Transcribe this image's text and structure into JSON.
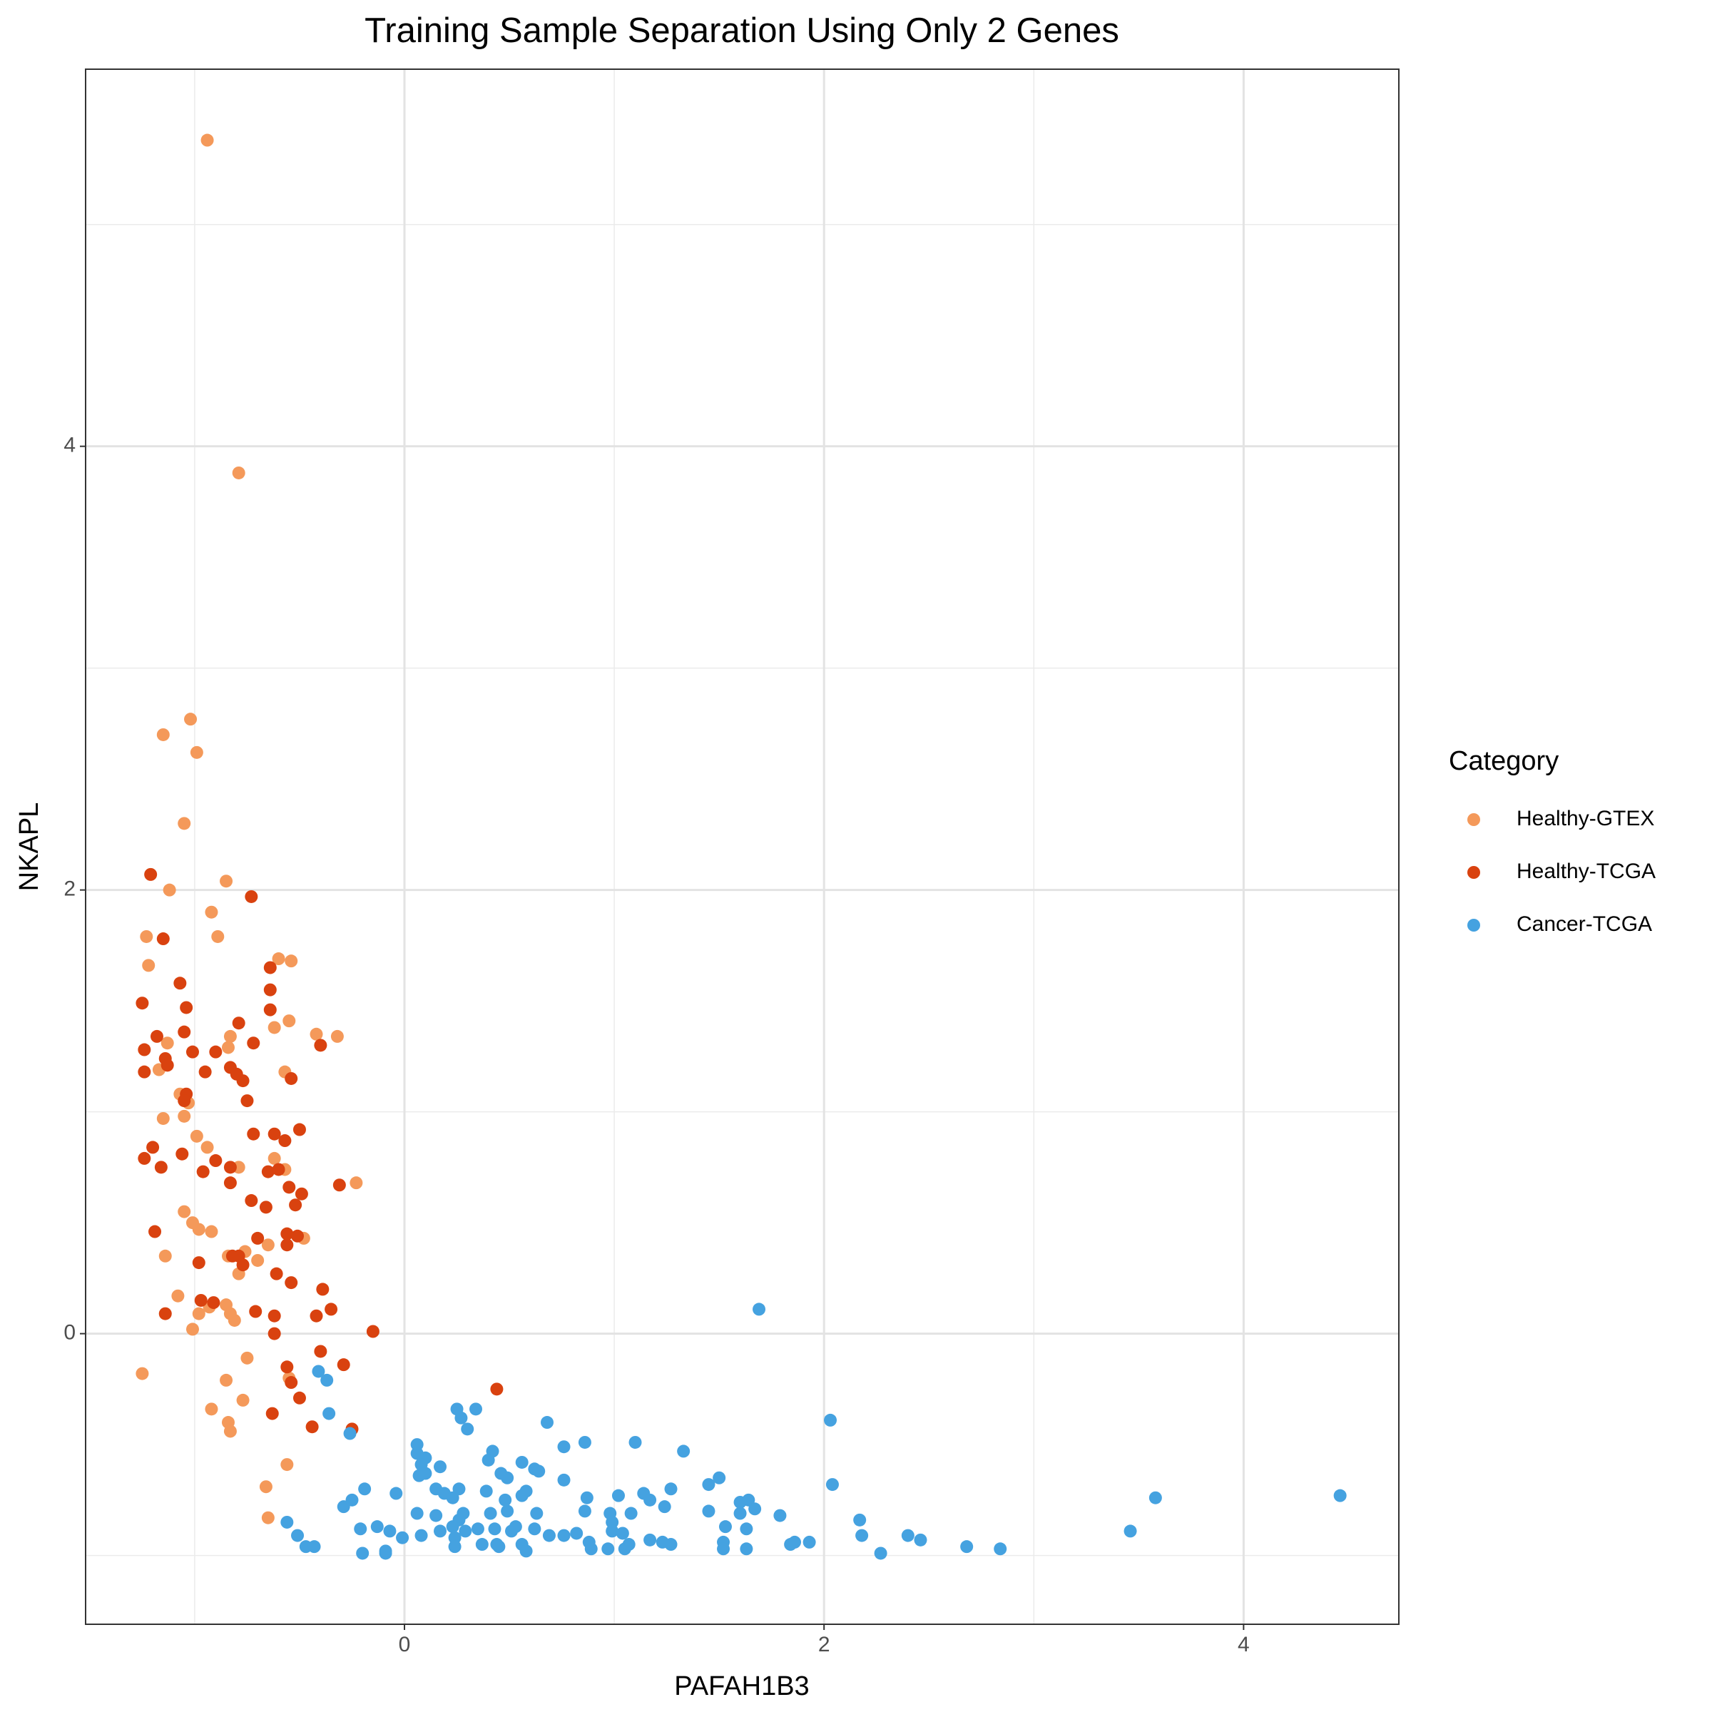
{
  "chart_data": {
    "type": "scatter",
    "title": "Training Sample Separation Using Only 2 Genes",
    "x_label": "PAFAH1B3",
    "y_label": "NKAPL",
    "xlim": [
      -1.52,
      4.74
    ],
    "ylim": [
      -1.31,
      5.7
    ],
    "xticks": [
      0,
      2,
      4
    ],
    "yticks": [
      0,
      2,
      4
    ],
    "x_minor_grid": [
      -1,
      1,
      3
    ],
    "y_minor_grid": [
      -1,
      1,
      3,
      5
    ],
    "grid": true,
    "legend_title": "Category",
    "legend_position": "right",
    "series": [
      {
        "name": "Healthy-GTEX",
        "color": "#f4995a",
        "x": [
          -0.94,
          -0.79,
          -1.02,
          -1.15,
          -0.99,
          -1.05,
          -0.85,
          -1.12,
          -0.92,
          -1.23,
          -0.89,
          -1.22,
          -0.6,
          -0.54,
          -0.55,
          -0.62,
          -0.42,
          -0.32,
          -0.83,
          -0.84,
          -1.13,
          -1.17,
          -0.57,
          -1.03,
          -1.07,
          -1.15,
          -1.05,
          -0.99,
          -0.94,
          -0.62,
          -0.79,
          -0.57,
          -0.23,
          -1.05,
          -1.01,
          -0.92,
          -0.98,
          -0.48,
          -0.65,
          -0.76,
          -0.84,
          -1.14,
          -0.7,
          -0.79,
          -1.08,
          -0.85,
          -0.93,
          -0.98,
          -0.83,
          -0.81,
          -1.01,
          -1.25,
          -0.75,
          -0.85,
          -0.55,
          -0.77,
          -0.92,
          -0.84,
          -0.83,
          -0.56,
          -0.66,
          -0.65
        ],
        "values": [
          5.38,
          3.88,
          2.77,
          2.7,
          2.62,
          2.3,
          2.04,
          2.0,
          1.9,
          1.79,
          1.79,
          1.66,
          1.69,
          1.68,
          1.41,
          1.38,
          1.35,
          1.34,
          1.34,
          1.29,
          1.31,
          1.19,
          1.18,
          1.04,
          1.08,
          0.97,
          0.98,
          0.89,
          0.84,
          0.79,
          0.75,
          0.74,
          0.68,
          0.55,
          0.5,
          0.46,
          0.47,
          0.43,
          0.4,
          0.37,
          0.35,
          0.35,
          0.33,
          0.27,
          0.17,
          0.13,
          0.12,
          0.09,
          0.09,
          0.06,
          0.02,
          -0.18,
          -0.11,
          -0.21,
          -0.2,
          -0.3,
          -0.34,
          -0.4,
          -0.44,
          -0.59,
          -0.69,
          -0.83
        ]
      },
      {
        "name": "Healthy-TCGA",
        "color": "#d9420f",
        "x": [
          -1.21,
          -0.73,
          -1.15,
          -0.64,
          -1.07,
          -0.64,
          -1.25,
          -1.04,
          -0.64,
          -0.79,
          -1.18,
          -1.05,
          -0.4,
          -0.72,
          -1.24,
          -1.01,
          -0.9,
          -1.14,
          -1.13,
          -0.83,
          -1.24,
          -0.8,
          -0.95,
          -0.77,
          -0.54,
          -1.04,
          -0.75,
          -1.05,
          -0.5,
          -0.72,
          -0.62,
          -0.57,
          -1.2,
          -1.06,
          -1.24,
          -0.9,
          -1.16,
          -0.96,
          -0.83,
          -0.65,
          -0.6,
          -0.31,
          -0.55,
          -0.83,
          -0.49,
          -0.73,
          -0.66,
          -0.52,
          -1.19,
          -0.56,
          -0.51,
          -0.7,
          -0.56,
          -0.82,
          -0.79,
          -0.98,
          -0.77,
          -0.61,
          -0.54,
          -0.39,
          -0.97,
          -0.91,
          -0.35,
          -0.42,
          -1.14,
          -0.71,
          -0.62,
          -0.15,
          -0.62,
          -0.4,
          -0.29,
          -0.56,
          -0.54,
          -0.5,
          -0.63,
          -0.44,
          -0.25,
          0.44
        ],
        "values": [
          2.07,
          1.97,
          1.78,
          1.65,
          1.58,
          1.55,
          1.49,
          1.47,
          1.46,
          1.4,
          1.34,
          1.36,
          1.3,
          1.31,
          1.28,
          1.27,
          1.27,
          1.24,
          1.21,
          1.2,
          1.18,
          1.17,
          1.18,
          1.14,
          1.15,
          1.08,
          1.05,
          1.05,
          0.92,
          0.9,
          0.9,
          0.87,
          0.84,
          0.81,
          0.79,
          0.78,
          0.75,
          0.73,
          0.75,
          0.73,
          0.74,
          0.67,
          0.66,
          0.68,
          0.63,
          0.6,
          0.57,
          0.58,
          0.46,
          0.45,
          0.44,
          0.43,
          0.4,
          0.35,
          0.35,
          0.32,
          0.31,
          0.27,
          0.23,
          0.2,
          0.15,
          0.14,
          0.11,
          0.08,
          0.09,
          0.1,
          0.08,
          0.01,
          0.0,
          -0.08,
          -0.14,
          -0.15,
          -0.22,
          -0.29,
          -0.36,
          -0.42,
          -0.43,
          -0.25
        ]
      },
      {
        "name": "Cancer-TCGA",
        "color": "#45a2e0",
        "x": [
          1.69,
          2.03,
          -0.41,
          -0.37,
          -0.36,
          -0.26,
          0.25,
          0.34,
          0.27,
          0.3,
          0.68,
          0.86,
          0.76,
          1.1,
          1.33,
          0.06,
          0.06,
          0.1,
          0.42,
          0.4,
          0.08,
          0.17,
          0.56,
          0.62,
          0.64,
          0.46,
          0.49,
          1.5,
          1.45,
          0.07,
          0.1,
          0.76,
          -0.19,
          0.15,
          0.26,
          1.27,
          2.04,
          -0.04,
          0.19,
          0.23,
          0.39,
          0.58,
          0.48,
          0.56,
          0.87,
          1.14,
          1.02,
          -0.25,
          -0.29,
          3.58,
          4.46,
          1.64,
          1.6,
          1.17,
          1.24,
          1.45,
          1.67,
          1.6,
          0.06,
          0.15,
          0.28,
          0.26,
          0.41,
          0.49,
          0.63,
          0.86,
          0.98,
          1.08,
          0.99,
          1.79,
          2.17,
          -0.56,
          -0.13,
          -0.21,
          -0.07,
          -0.01,
          0.08,
          0.17,
          0.23,
          0.29,
          0.35,
          0.43,
          0.51,
          0.53,
          0.62,
          0.69,
          0.76,
          0.82,
          0.99,
          1.04,
          1.53,
          1.63,
          3.46,
          2.4,
          2.18,
          2.46,
          0.88,
          1.17,
          -0.51,
          -0.47,
          -0.43,
          0.24,
          0.24,
          0.37,
          0.44,
          0.45,
          0.56,
          0.58,
          0.89,
          0.97,
          1.05,
          1.07,
          1.23,
          1.27,
          1.52,
          1.52,
          1.63,
          1.84,
          1.86,
          1.93,
          2.68,
          2.84,
          2.27,
          -0.2,
          -0.09,
          -0.09
        ],
        "values": [
          0.11,
          -0.39,
          -0.17,
          -0.21,
          -0.36,
          -0.45,
          -0.34,
          -0.34,
          -0.38,
          -0.43,
          -0.4,
          -0.49,
          -0.51,
          -0.49,
          -0.53,
          -0.5,
          -0.54,
          -0.56,
          -0.53,
          -0.57,
          -0.59,
          -0.6,
          -0.58,
          -0.61,
          -0.62,
          -0.63,
          -0.65,
          -0.65,
          -0.68,
          -0.64,
          -0.63,
          -0.66,
          -0.7,
          -0.7,
          -0.7,
          -0.7,
          -0.68,
          -0.72,
          -0.72,
          -0.74,
          -0.71,
          -0.71,
          -0.75,
          -0.73,
          -0.74,
          -0.72,
          -0.73,
          -0.75,
          -0.78,
          -0.74,
          -0.73,
          -0.75,
          -0.76,
          -0.75,
          -0.78,
          -0.8,
          -0.79,
          -0.81,
          -0.81,
          -0.82,
          -0.81,
          -0.84,
          -0.81,
          -0.8,
          -0.81,
          -0.8,
          -0.81,
          -0.81,
          -0.85,
          -0.82,
          -0.84,
          -0.85,
          -0.87,
          -0.88,
          -0.89,
          -0.92,
          -0.91,
          -0.89,
          -0.87,
          -0.89,
          -0.88,
          -0.88,
          -0.89,
          -0.87,
          -0.88,
          -0.91,
          -0.91,
          -0.9,
          -0.89,
          -0.9,
          -0.87,
          -0.88,
          -0.89,
          -0.91,
          -0.91,
          -0.93,
          -0.94,
          -0.93,
          -0.91,
          -0.96,
          -0.96,
          -0.92,
          -0.96,
          -0.95,
          -0.95,
          -0.96,
          -0.95,
          -0.98,
          -0.97,
          -0.97,
          -0.97,
          -0.95,
          -0.94,
          -0.95,
          -0.94,
          -0.97,
          -0.97,
          -0.95,
          -0.94,
          -0.94,
          -0.96,
          -0.97,
          -0.99,
          -0.99,
          -0.99,
          -0.98
        ]
      }
    ]
  }
}
